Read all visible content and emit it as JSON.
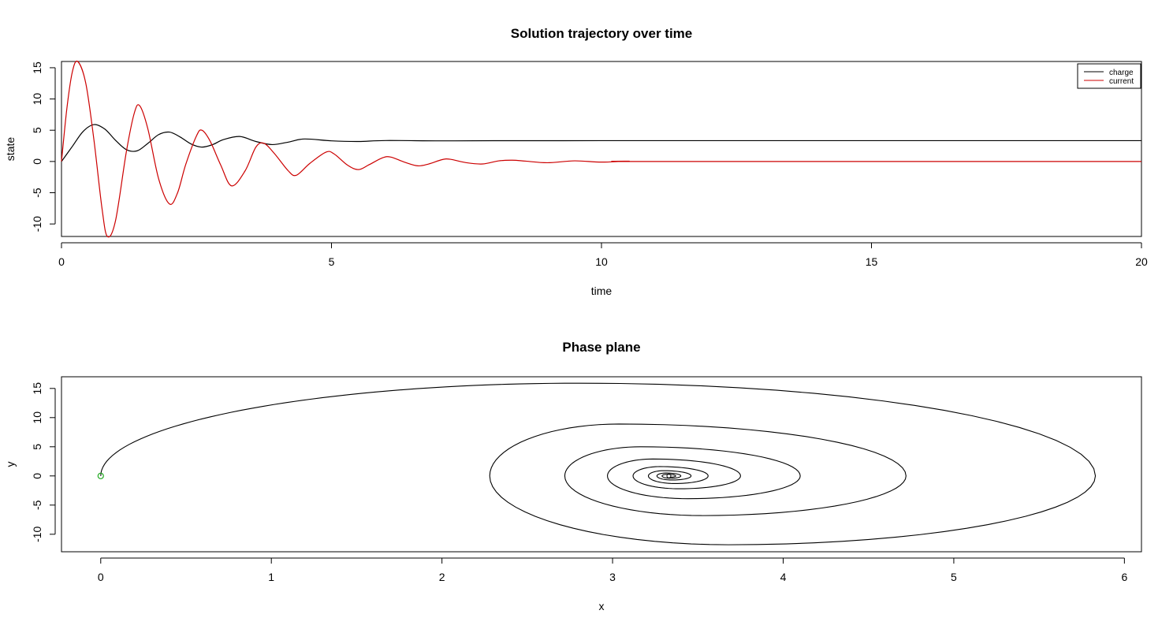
{
  "chart_data": [
    {
      "type": "line",
      "title": "Solution trajectory over time",
      "xlabel": "time",
      "ylabel": "state",
      "xlim": [
        0,
        20
      ],
      "ylim": [
        -12,
        16
      ],
      "xticks": [
        0,
        5,
        10,
        15,
        20
      ],
      "yticks": [
        -10,
        -5,
        0,
        5,
        10,
        15
      ],
      "grid": false,
      "legend": {
        "position": "top-right",
        "entries": [
          "charge",
          "current"
        ]
      },
      "colors": {
        "charge": "#000000",
        "current": "#cc0000"
      },
      "series": [
        {
          "name": "charge",
          "x": [
            0,
            0.2,
            0.4,
            0.6,
            0.8,
            1.0,
            1.2,
            1.4,
            1.6,
            1.8,
            2.0,
            2.2,
            2.4,
            2.6,
            2.8,
            3.0,
            3.3,
            3.6,
            3.9,
            4.2,
            4.5,
            5.0,
            5.5,
            6.0,
            7.0,
            8.0,
            10.0,
            12.0,
            15.0,
            20.0
          ],
          "values": [
            0,
            2.4,
            4.8,
            5.9,
            5.2,
            3.4,
            1.9,
            1.7,
            2.9,
            4.3,
            4.7,
            3.9,
            2.8,
            2.3,
            2.7,
            3.5,
            4.0,
            3.2,
            2.7,
            3.1,
            3.6,
            3.3,
            3.2,
            3.35,
            3.3,
            3.32,
            3.33,
            3.33,
            3.33,
            3.33
          ]
        },
        {
          "name": "current",
          "x": [
            0,
            0.1,
            0.2,
            0.3,
            0.45,
            0.6,
            0.75,
            0.85,
            1.0,
            1.2,
            1.35,
            1.45,
            1.6,
            1.8,
            2.0,
            2.15,
            2.3,
            2.5,
            2.6,
            2.75,
            2.95,
            3.15,
            3.4,
            3.6,
            3.75,
            3.95,
            4.2,
            4.35,
            4.6,
            4.9,
            5.05,
            5.3,
            5.5,
            5.7,
            5.95,
            6.1,
            6.35,
            6.6,
            6.8,
            7.05,
            7.2,
            7.5,
            7.8,
            8.1,
            8.35,
            8.6,
            9.0,
            9.5,
            10.0,
            10.5,
            11.0,
            20.0
          ],
          "values": [
            0,
            8.5,
            14.3,
            16.0,
            12.5,
            3.5,
            -7.5,
            -12.0,
            -9.5,
            1.5,
            7.8,
            8.9,
            5.2,
            -2.8,
            -6.8,
            -5.0,
            -0.5,
            4.1,
            5.0,
            3.3,
            -0.6,
            -3.9,
            -1.5,
            2.3,
            2.9,
            1.2,
            -1.5,
            -2.2,
            -0.3,
            1.5,
            1.2,
            -0.6,
            -1.3,
            -0.5,
            0.6,
            0.7,
            -0.1,
            -0.7,
            -0.4,
            0.3,
            0.35,
            -0.2,
            -0.4,
            0.1,
            0.2,
            0.05,
            -0.2,
            0.1,
            -0.1,
            0.05,
            0,
            0
          ]
        }
      ]
    },
    {
      "type": "line",
      "title": "Phase plane",
      "xlabel": "x",
      "ylabel": "y",
      "xlim": [
        -0.23,
        6.1
      ],
      "ylim": [
        -13,
        17
      ],
      "xticks": [
        0,
        1,
        2,
        3,
        4,
        5,
        6
      ],
      "yticks": [
        -10,
        -5,
        0,
        5,
        10,
        15
      ],
      "grid": false,
      "colors": {
        "trajectory": "#000000",
        "start_point": "#22aa22"
      },
      "start_point": {
        "x": 0,
        "y": 0
      },
      "spiral": {
        "center": [
          3.33,
          0
        ],
        "loops": [
          {
            "x_right": 5.83,
            "x_left": 1.46,
            "y_top": 15.9,
            "y_bottom": -11.8
          },
          {
            "x_right": 4.72,
            "x_left": 2.28,
            "y_top": 8.9,
            "y_bottom": -6.8
          },
          {
            "x_right": 4.1,
            "x_left": 2.72,
            "y_top": 5.0,
            "y_bottom": -3.9
          },
          {
            "x_right": 3.75,
            "x_left": 2.97,
            "y_top": 2.9,
            "y_bottom": -2.2
          },
          {
            "x_right": 3.56,
            "x_left": 3.12,
            "y_top": 1.6,
            "y_bottom": -1.3
          },
          {
            "x_right": 3.46,
            "x_left": 3.21,
            "y_top": 0.9,
            "y_bottom": -0.7
          },
          {
            "x_right": 3.4,
            "x_left": 3.26,
            "y_top": 0.5,
            "y_bottom": -0.4
          },
          {
            "x_right": 3.37,
            "x_left": 3.29,
            "y_top": 0.28,
            "y_bottom": -0.22
          }
        ]
      }
    }
  ]
}
